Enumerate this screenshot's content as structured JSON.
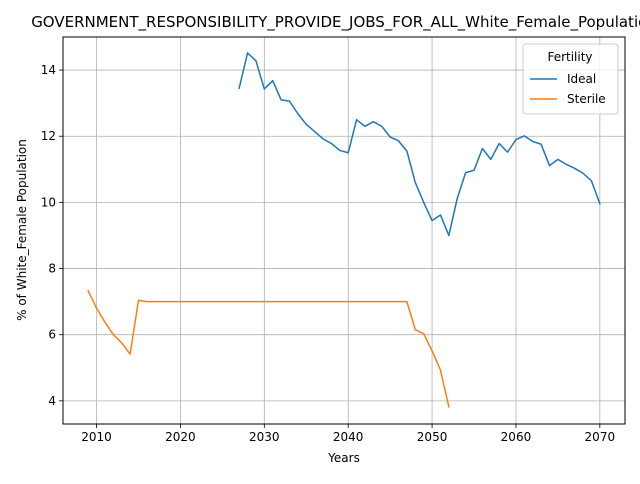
{
  "chart_data": {
    "type": "line",
    "title": "GOVERNMENT_RESPONSIBILITY_PROVIDE_JOBS_FOR_ALL_White_Female_Population",
    "xlabel": "Years",
    "ylabel": "% of White_Female Population",
    "xlim": [
      2006,
      2073
    ],
    "ylim": [
      3.3,
      15.0
    ],
    "xticks": [
      2010,
      2020,
      2030,
      2040,
      2050,
      2060,
      2070
    ],
    "yticks": [
      4,
      6,
      8,
      10,
      12,
      14
    ],
    "grid": true,
    "legend": {
      "title": "Fertility",
      "placement": "top-right"
    },
    "series": [
      {
        "name": "Ideal",
        "color": "#1f77b4",
        "x": [
          2027,
          2028,
          2029,
          2030,
          2031,
          2032,
          2033,
          2034,
          2035,
          2036,
          2037,
          2038,
          2039,
          2040,
          2041,
          2042,
          2043,
          2044,
          2045,
          2046,
          2047,
          2048,
          2049,
          2050,
          2051,
          2052,
          2053,
          2054,
          2055,
          2056,
          2057,
          2058,
          2059,
          2060,
          2061,
          2062,
          2063,
          2064,
          2065,
          2066,
          2067,
          2068,
          2069,
          2070
        ],
        "y": [
          13.45,
          14.52,
          14.28,
          13.43,
          13.68,
          13.1,
          13.06,
          12.68,
          12.36,
          12.14,
          11.92,
          11.78,
          11.57,
          11.5,
          12.5,
          12.3,
          12.44,
          12.3,
          11.98,
          11.86,
          11.55,
          10.6,
          10.0,
          9.45,
          9.62,
          9.0,
          10.12,
          10.9,
          10.97,
          11.63,
          11.3,
          11.78,
          11.52,
          11.9,
          12.01,
          11.84,
          11.76,
          11.11,
          11.3,
          11.15,
          11.03,
          10.88,
          10.65,
          9.96
        ]
      },
      {
        "name": "Sterile",
        "color": "#ff7f0e",
        "x": [
          2009,
          2010,
          2011,
          2012,
          2013,
          2014,
          2015,
          2016,
          2017,
          2018,
          2019,
          2020,
          2021,
          2022,
          2023,
          2024,
          2025,
          2026,
          2027,
          2028,
          2029,
          2030,
          2031,
          2032,
          2033,
          2034,
          2035,
          2036,
          2037,
          2038,
          2039,
          2040,
          2041,
          2042,
          2043,
          2044,
          2045,
          2046,
          2047,
          2048,
          2049,
          2050,
          2051,
          2052
        ],
        "y": [
          7.33,
          6.8,
          6.38,
          6.0,
          5.75,
          5.41,
          7.04,
          7.0,
          7.0,
          7.0,
          7.0,
          7.0,
          7.0,
          7.0,
          7.0,
          7.0,
          7.0,
          7.0,
          7.0,
          7.0,
          7.0,
          7.0,
          7.0,
          7.0,
          7.0,
          7.0,
          7.0,
          7.0,
          7.0,
          7.0,
          7.0,
          7.0,
          7.0,
          7.0,
          7.0,
          7.0,
          7.0,
          7.0,
          7.0,
          6.15,
          6.03,
          5.51,
          4.93,
          3.82
        ]
      }
    ]
  }
}
